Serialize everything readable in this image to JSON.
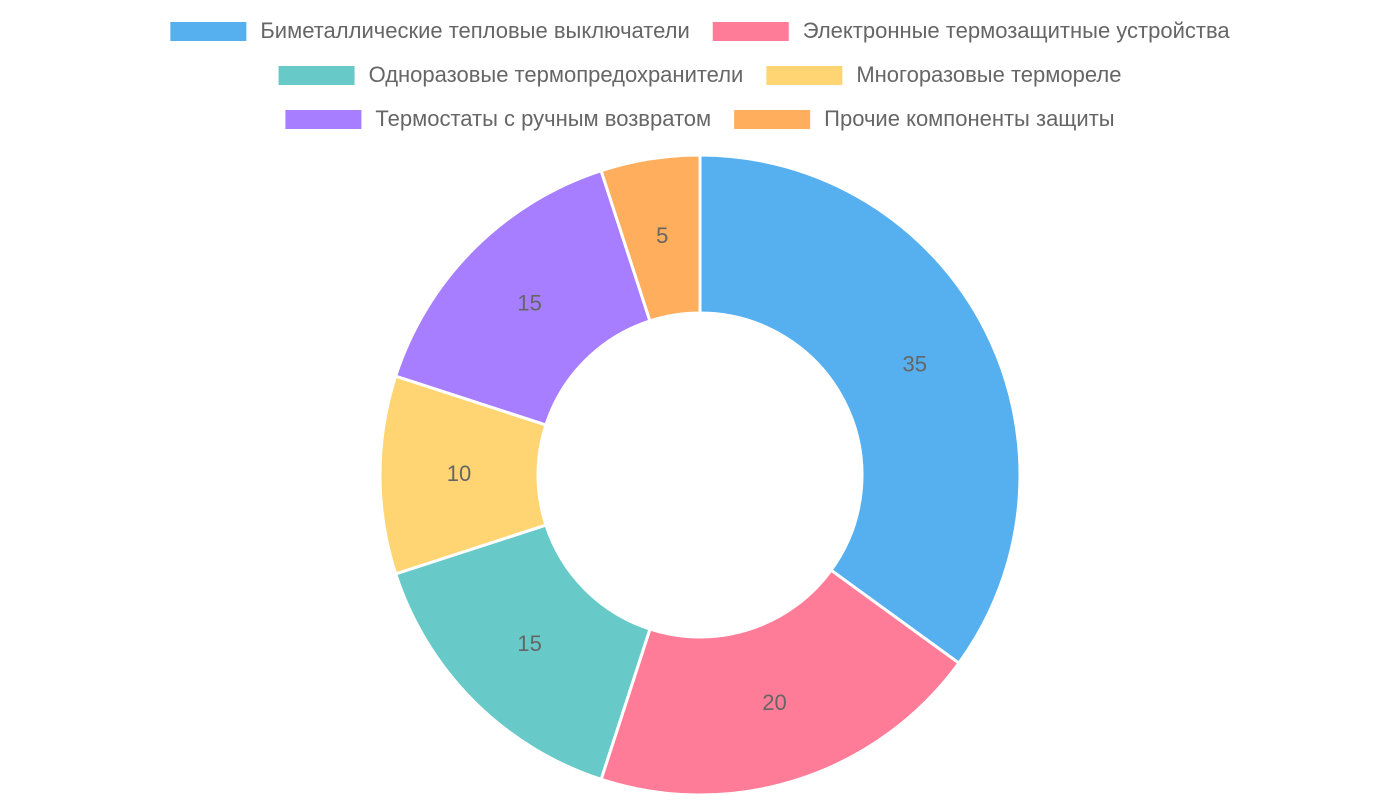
{
  "chart_data": {
    "type": "doughnut",
    "categories": [
      "Биметаллические тепловые выключатели",
      "Электронные термозащитные устройства",
      "Одноразовые термопредохранители",
      "Многоразовые термореле",
      "Термостаты с ручным возвратом",
      "Прочие компоненты защиты"
    ],
    "values": [
      35,
      20,
      15,
      10,
      15,
      5
    ],
    "colors": [
      "#56b0f0",
      "#ff7c98",
      "#68c9c9",
      "#ffd573",
      "#a67eff",
      "#ffae5e"
    ],
    "legend": "top"
  }
}
